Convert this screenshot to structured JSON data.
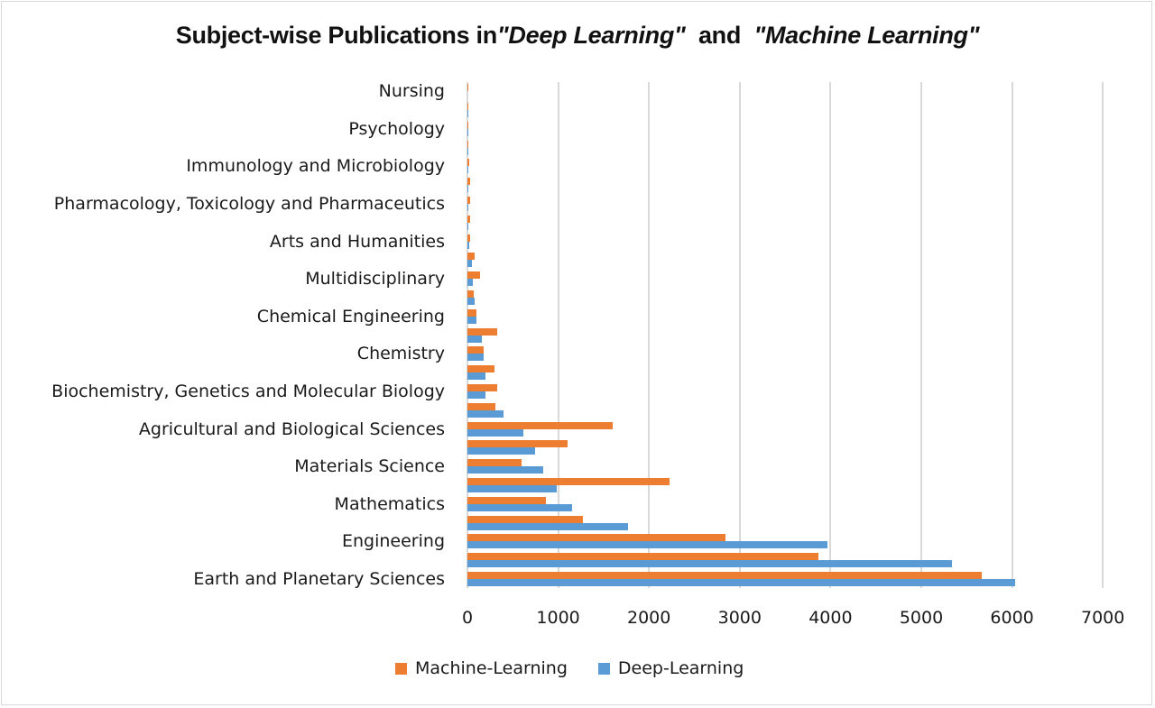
{
  "chart_data": {
    "type": "bar",
    "orientation": "horizontal",
    "title": "Subject-wise Publications in \"Deep Learning\"  and  \"Machine Learning\"",
    "title_parts": {
      "prefix": "Subject-wise Publications in",
      "term1": "\"Deep Learning\"",
      "middle": "  and  ",
      "term2": "\"Machine Learning\""
    },
    "xlabel": "",
    "ylabel": "",
    "xlim": [
      0,
      7000
    ],
    "x_ticks": [
      "0",
      "1000",
      "2000",
      "3000",
      "4000",
      "5000",
      "6000",
      "7000"
    ],
    "grid": true,
    "legend_position": "bottom",
    "categories_bottom_to_top": [
      "Earth and Planetary Sciences",
      "",
      "Engineering",
      "",
      "Mathematics",
      "",
      "Materials Science",
      "",
      "Agricultural and Biological Sciences",
      "",
      "Biochemistry, Genetics and Molecular Biology",
      "",
      "Chemistry",
      "",
      "Chemical Engineering",
      "",
      "Multidisciplinary",
      "",
      "Arts and Humanities",
      "",
      "Pharmacology, Toxicology and Pharmaceutics",
      "",
      "Immunology and Microbiology",
      "",
      "Psychology",
      "",
      "Nursing"
    ],
    "series": [
      {
        "name": "Machine-Learning",
        "color": "#ed7d31",
        "values": [
          5670,
          3870,
          2840,
          1270,
          865,
          2230,
          600,
          1100,
          1600,
          310,
          330,
          300,
          180,
          330,
          100,
          70,
          140,
          80,
          25,
          30,
          30,
          25,
          15,
          5,
          3,
          2,
          1
        ]
      },
      {
        "name": "Deep-Learning",
        "color": "#5b9bd5",
        "values": [
          6035,
          5335,
          3965,
          1770,
          1155,
          985,
          835,
          745,
          615,
          400,
          200,
          195,
          175,
          160,
          100,
          80,
          60,
          50,
          15,
          5,
          5,
          5,
          3,
          2,
          1,
          1,
          0
        ]
      }
    ]
  },
  "legend": {
    "items": [
      {
        "label": "Machine-Learning",
        "color": "#ed7d31"
      },
      {
        "label": "Deep-Learning",
        "color": "#5b9bd5"
      }
    ]
  }
}
